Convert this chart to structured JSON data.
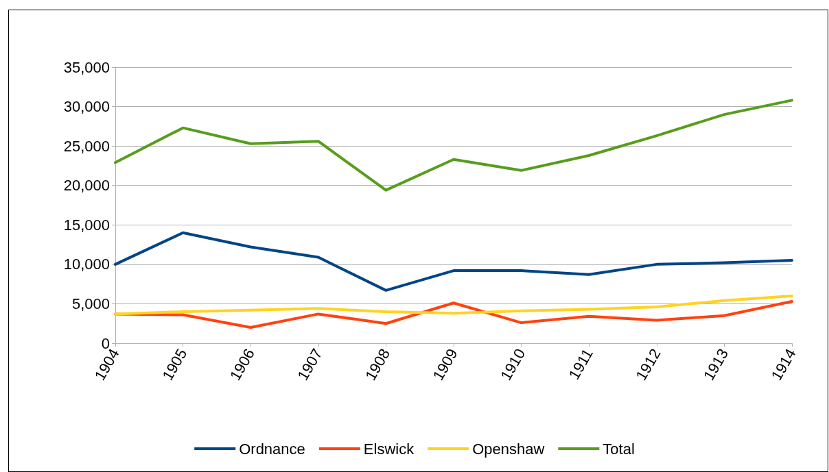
{
  "chart_data": {
    "type": "line",
    "categories": [
      "1904",
      "1905",
      "1906",
      "1907",
      "1908",
      "1909",
      "1910",
      "1911",
      "1912",
      "1913",
      "1914"
    ],
    "series": [
      {
        "name": "Ordnance",
        "color": "#004586",
        "values": [
          10000,
          14000,
          12200,
          10900,
          6700,
          9200,
          9200,
          8700,
          10000,
          10200,
          10500
        ]
      },
      {
        "name": "Elswick",
        "color": "#ff420e",
        "values": [
          3700,
          3600,
          2000,
          3700,
          2500,
          5100,
          2600,
          3400,
          2900,
          3500,
          5300
        ]
      },
      {
        "name": "Openshaw",
        "color": "#ffd320",
        "values": [
          3700,
          4000,
          4200,
          4400,
          4000,
          3800,
          4100,
          4300,
          4600,
          5400,
          6000
        ]
      },
      {
        "name": "Total",
        "color": "#579d1c",
        "values": [
          22900,
          27300,
          25300,
          25600,
          19400,
          23300,
          21900,
          23800,
          26300,
          29000,
          30800
        ]
      }
    ],
    "ylim": [
      0,
      35000
    ],
    "yticks": [
      0,
      {
        "value": 5000,
        "label": "5,000"
      },
      {
        "value": 10000,
        "label": "10,000"
      },
      {
        "value": 15000,
        "label": "15,000"
      },
      {
        "value": 20000,
        "label": "20,000"
      },
      {
        "value": 25000,
        "label": "25,000"
      },
      {
        "value": 30000,
        "label": "30,000"
      },
      {
        "value": 35000,
        "label": "35,000"
      }
    ],
    "grid": "y",
    "legend": "bottom",
    "marker": "none",
    "line_style": "solid"
  }
}
